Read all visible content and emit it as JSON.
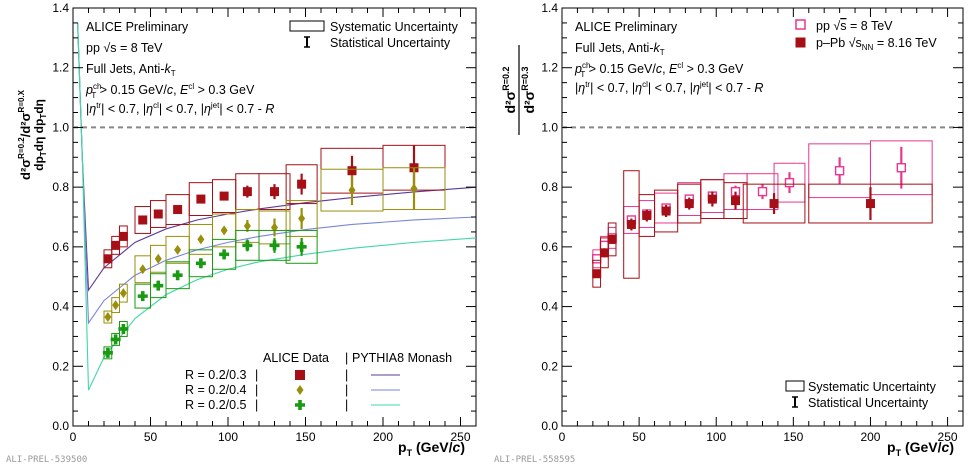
{
  "chart_data": [
    {
      "type": "scatter",
      "ylabel": "d²σ^{R=0.2}/dp_T dη / d²σ^{R=0.X}/dp_T dη",
      "xlabel": "p_T (GeV/c)",
      "xlim": [
        0,
        260
      ],
      "ylim": [
        0.0,
        1.4
      ],
      "x_ticks": [
        "0",
        "50",
        "100",
        "150",
        "200",
        "250"
      ],
      "y_ticks": [
        "0.0",
        "0.2",
        "0.4",
        "0.6",
        "0.8",
        "1.0",
        "1.2",
        "1.4"
      ],
      "reference_line": 1.0,
      "grid": false,
      "preliminary_id": "ALI-PREL-539500",
      "annotations": [
        "ALICE Preliminary",
        "pp √s = 8 TeV",
        "Full Jets, Anti-kT",
        "pT^ch > 0.15 GeV/c, E^cl > 0.3 GeV",
        "|η^tr| < 0.7, |η^cl| < 0.7, |η^jet| < 0.7 - R"
      ],
      "uncertainty_legend": [
        "Systematic Uncertainty",
        "Statistical Uncertainty"
      ],
      "legend_headers": [
        "ALICE Data",
        "PYTHIA8 Monash"
      ],
      "series": [
        {
          "name": "R = 0.2/0.3",
          "color": "#a50f15",
          "marker": "square",
          "x": [
            22.5,
            27.5,
            32.5,
            45,
            55,
            67.5,
            82.5,
            97.5,
            112.5,
            130,
            147.5,
            180,
            220
          ],
          "y": [
            0.56,
            0.605,
            0.635,
            0.69,
            0.71,
            0.725,
            0.76,
            0.77,
            0.785,
            0.785,
            0.81,
            0.855,
            0.865
          ],
          "stat": [
            0.01,
            0.01,
            0.01,
            0.01,
            0.01,
            0.01,
            0.01,
            0.012,
            0.02,
            0.025,
            0.035,
            0.05,
            0.075
          ],
          "sys": [
            0.03,
            0.03,
            0.035,
            0.045,
            0.045,
            0.05,
            0.055,
            0.055,
            0.06,
            0.06,
            0.065,
            0.075,
            0.075
          ],
          "xw": [
            2.5,
            2.5,
            2.5,
            5,
            5,
            7.5,
            7.5,
            7.5,
            7.5,
            10,
            10,
            20,
            20
          ],
          "pythia_x": [
            10,
            20,
            40,
            60,
            80,
            100,
            120,
            150,
            180,
            220,
            260
          ],
          "pythia_y": [
            0.455,
            0.53,
            0.615,
            0.66,
            0.69,
            0.71,
            0.727,
            0.748,
            0.765,
            0.784,
            0.8
          ]
        },
        {
          "name": "R = 0.2/0.4",
          "color": "#998f0c",
          "marker": "diamond",
          "x": [
            22.5,
            27.5,
            32.5,
            45,
            55,
            67.5,
            82.5,
            97.5,
            112.5,
            130,
            147.5,
            180,
            220
          ],
          "y": [
            0.365,
            0.405,
            0.445,
            0.525,
            0.56,
            0.59,
            0.625,
            0.655,
            0.67,
            0.665,
            0.695,
            0.79,
            0.795
          ],
          "stat": [
            0.01,
            0.01,
            0.01,
            0.01,
            0.01,
            0.01,
            0.01,
            0.012,
            0.02,
            0.03,
            0.035,
            0.05,
            0.07
          ],
          "sys": [
            0.02,
            0.025,
            0.03,
            0.045,
            0.045,
            0.045,
            0.05,
            0.055,
            0.055,
            0.055,
            0.06,
            0.07,
            0.07
          ],
          "xw": [
            2.5,
            2.5,
            2.5,
            5,
            5,
            7.5,
            7.5,
            7.5,
            7.5,
            10,
            10,
            20,
            20
          ],
          "pythia_x": [
            10,
            20,
            40,
            60,
            80,
            100,
            120,
            150,
            180,
            220,
            260
          ],
          "pythia_y": [
            0.345,
            0.42,
            0.505,
            0.555,
            0.59,
            0.615,
            0.635,
            0.658,
            0.675,
            0.69,
            0.7
          ]
        },
        {
          "name": "R = 0.2/0.5",
          "color": "#1a9912",
          "marker": "cross",
          "x": [
            22.5,
            27.5,
            32.5,
            45,
            55,
            67.5,
            82.5,
            97.5,
            112.5,
            130,
            147.5
          ],
          "y": [
            0.245,
            0.29,
            0.325,
            0.435,
            0.47,
            0.505,
            0.545,
            0.575,
            0.605,
            0.605,
            0.6
          ],
          "stat": [
            0.01,
            0.01,
            0.01,
            0.01,
            0.01,
            0.01,
            0.012,
            0.015,
            0.02,
            0.025,
            0.03
          ],
          "sys": [
            0.02,
            0.02,
            0.025,
            0.04,
            0.04,
            0.045,
            0.045,
            0.05,
            0.05,
            0.05,
            0.055
          ],
          "xw": [
            2.5,
            2.5,
            2.5,
            5,
            5,
            7.5,
            7.5,
            7.5,
            7.5,
            10,
            10
          ],
          "pythia_x": [
            10,
            20,
            40,
            60,
            80,
            100,
            120,
            150,
            180,
            220,
            260
          ],
          "pythia_y": [
            0.12,
            0.23,
            0.36,
            0.44,
            0.49,
            0.525,
            0.55,
            0.575,
            0.595,
            0.615,
            0.63
          ]
        }
      ]
    },
    {
      "type": "scatter",
      "ylabel": "d²σ^{R=0.2} / d²σ^{R=0.3}",
      "xlabel": "p_T (GeV/c)",
      "xlim": [
        0,
        260
      ],
      "ylim": [
        0.0,
        1.4
      ],
      "x_ticks": [
        "0",
        "50",
        "100",
        "150",
        "200",
        "250"
      ],
      "y_ticks": [
        "0.0",
        "0.2",
        "0.4",
        "0.6",
        "0.8",
        "1.0",
        "1.2",
        "1.4"
      ],
      "reference_line": 1.0,
      "grid": false,
      "preliminary_id": "ALI-PREL-558595",
      "annotations": [
        "ALICE Preliminary",
        "Full Jets, Anti-kT",
        "pT^ch > 0.15 GeV/c, E^cl > 0.3 GeV",
        "|η^tr| < 0.7, |η^cl| < 0.7, |η^jet| < 0.7 - R"
      ],
      "uncertainty_legend": [
        "Systematic Uncertainty",
        "Statistical Uncertainty"
      ],
      "series": [
        {
          "name": "pp √s = 8 TeV",
          "color": "#e8378f",
          "marker": "open-square",
          "x": [
            22.5,
            27.5,
            32.5,
            45,
            55,
            67.5,
            82.5,
            97.5,
            112.5,
            130,
            147.5,
            180,
            220
          ],
          "y": [
            0.56,
            0.605,
            0.63,
            0.69,
            0.71,
            0.73,
            0.76,
            0.77,
            0.785,
            0.785,
            0.815,
            0.855,
            0.865
          ],
          "stat": [
            0.01,
            0.01,
            0.01,
            0.01,
            0.01,
            0.01,
            0.01,
            0.012,
            0.02,
            0.025,
            0.035,
            0.045,
            0.07
          ],
          "sys": [
            0.03,
            0.03,
            0.035,
            0.045,
            0.045,
            0.05,
            0.055,
            0.055,
            0.06,
            0.06,
            0.065,
            0.09,
            0.09
          ],
          "xw": [
            2.5,
            2.5,
            2.5,
            5,
            5,
            7.5,
            7.5,
            7.5,
            7.5,
            10,
            10,
            20,
            20
          ]
        },
        {
          "name": "p–Pb √s_NN = 8.16 TeV",
          "color": "#a50f15",
          "marker": "square",
          "x": [
            22.5,
            27.5,
            32.5,
            45,
            55,
            67.5,
            82.5,
            97.5,
            112.5,
            137.5,
            200
          ],
          "y": [
            0.51,
            0.58,
            0.625,
            0.675,
            0.705,
            0.72,
            0.745,
            0.76,
            0.755,
            0.745,
            0.745
          ],
          "stat": [
            0.01,
            0.015,
            0.015,
            0.02,
            0.02,
            0.02,
            0.02,
            0.025,
            0.03,
            0.035,
            0.055
          ],
          "sys": [
            0.045,
            0.05,
            0.055,
            0.18,
            0.07,
            0.07,
            0.065,
            0.065,
            0.06,
            0.065,
            0.065
          ],
          "xw": [
            2.5,
            2.5,
            2.5,
            5,
            5,
            7.5,
            7.5,
            7.5,
            7.5,
            20,
            40
          ]
        }
      ]
    }
  ]
}
